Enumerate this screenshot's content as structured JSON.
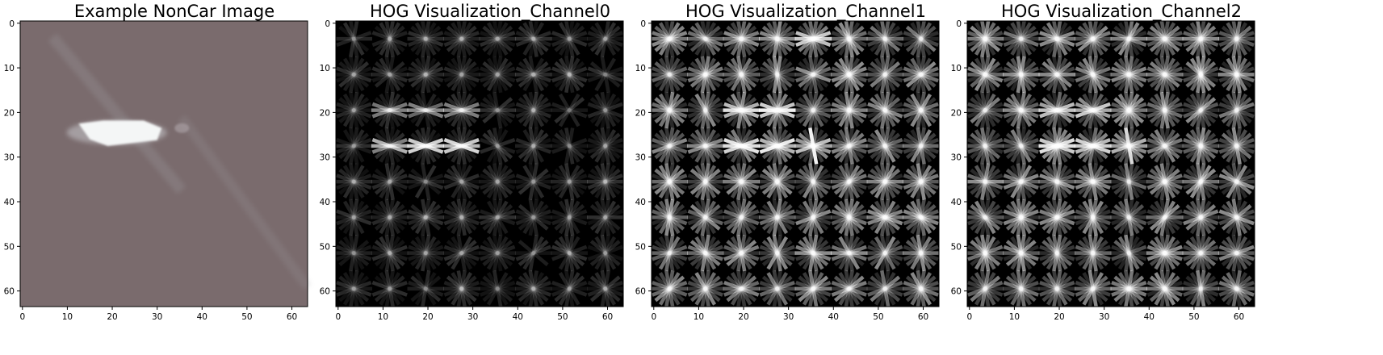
{
  "panels": [
    {
      "id": "noncar",
      "title": "Example NonCar Image",
      "kind": "photo",
      "x_ticks": [
        "0",
        "10",
        "20",
        "30",
        "40",
        "50",
        "60"
      ],
      "y_ticks": [
        "0",
        "10",
        "20",
        "30",
        "40",
        "50",
        "60"
      ],
      "colors": {
        "background": "#7a6b6d",
        "highlight": "#f4f6f6",
        "streak": "#a2a2a6"
      }
    },
    {
      "id": "hog0",
      "title": "HOG Visualization_Channel0",
      "kind": "hog",
      "x_ticks": [
        "0",
        "10",
        "20",
        "30",
        "40",
        "50",
        "60"
      ],
      "y_ticks": [
        "0",
        "10",
        "20",
        "30",
        "40",
        "50",
        "60"
      ],
      "colors": {
        "background": "#000000",
        "feature": "#ffffff"
      }
    },
    {
      "id": "hog1",
      "title": "HOG Visualization_Channel1",
      "kind": "hog",
      "x_ticks": [
        "0",
        "10",
        "20",
        "30",
        "40",
        "50",
        "60"
      ],
      "y_ticks": [
        "0",
        "10",
        "20",
        "30",
        "40",
        "50",
        "60"
      ],
      "colors": {
        "background": "#000000",
        "feature": "#ffffff"
      }
    },
    {
      "id": "hog2",
      "title": "HOG Visualization_Channel2",
      "kind": "hog",
      "x_ticks": [
        "0",
        "10",
        "20",
        "30",
        "40",
        "50",
        "60"
      ],
      "y_ticks": [
        "0",
        "10",
        "20",
        "30",
        "40",
        "50",
        "60"
      ],
      "colors": {
        "background": "#000000",
        "feature": "#ffffff"
      }
    }
  ]
}
